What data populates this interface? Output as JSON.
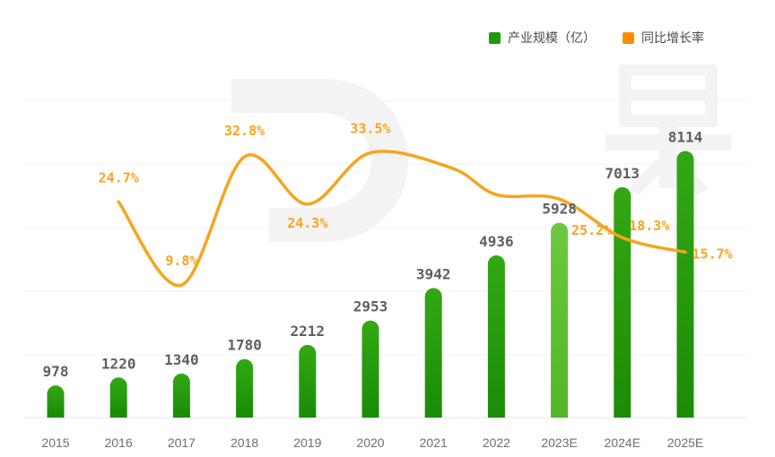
{
  "chart_data": {
    "type": "bar",
    "categories": [
      "2015",
      "2016",
      "2017",
      "2018",
      "2019",
      "2020",
      "2021",
      "2022",
      "2023E",
      "2024E",
      "2025E"
    ],
    "series": [
      {
        "name": "产业规模（亿）",
        "type": "bar",
        "color": "#1f9a0a",
        "values": [
          978,
          1220,
          1340,
          1780,
          2212,
          2953,
          3942,
          4936,
          5928,
          7013,
          8114
        ],
        "labels": [
          "978",
          "1220",
          "1340",
          "1780",
          "2212",
          "2953",
          "3942",
          "4936",
          "5928",
          "7013",
          "8114"
        ]
      },
      {
        "name": "同比增长率",
        "type": "line",
        "color": "#f7a41d",
        "values": [
          null,
          24.7,
          9.8,
          32.8,
          24.3,
          33.5,
          null,
          null,
          25.2,
          18.3,
          15.7
        ],
        "labels": [
          "",
          "24.7%",
          "9.8%",
          "32.8%",
          "24.3%",
          "33.5%",
          "",
          "",
          "25.2%",
          "18.3%",
          "15.7%"
        ]
      }
    ],
    "y_left": {
      "range": [
        0,
        9000
      ]
    },
    "y_right": {
      "range": [
        5,
        40
      ]
    },
    "grid": true,
    "legend": "top-right",
    "highlight_color": "#6cc93f",
    "highlight_category": "2023E"
  }
}
